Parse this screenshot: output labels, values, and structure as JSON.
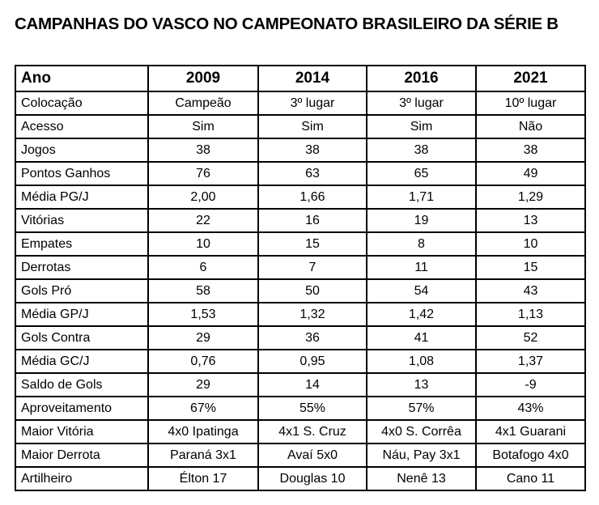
{
  "page": {
    "title": "CAMPANHAS DO VASCO NO CAMPEONATO BRASILEIRO DA SÉRIE B"
  },
  "table": {
    "header": [
      "Ano",
      "2009",
      "2014",
      "2016",
      "2021"
    ],
    "rows": [
      {
        "label": "Colocação",
        "values": [
          "Campeão",
          "3º lugar",
          "3º lugar",
          "10º lugar"
        ]
      },
      {
        "label": "Acesso",
        "values": [
          "Sim",
          "Sim",
          "Sim",
          "Não"
        ]
      },
      {
        "label": "Jogos",
        "values": [
          "38",
          "38",
          "38",
          "38"
        ]
      },
      {
        "label": "Pontos Ganhos",
        "values": [
          "76",
          "63",
          "65",
          "49"
        ]
      },
      {
        "label": "Média PG/J",
        "values": [
          "2,00",
          "1,66",
          "1,71",
          "1,29"
        ]
      },
      {
        "label": "Vitórias",
        "values": [
          "22",
          "16",
          "19",
          "13"
        ]
      },
      {
        "label": "Empates",
        "values": [
          "10",
          "15",
          "8",
          "10"
        ]
      },
      {
        "label": "Derrotas",
        "values": [
          "6",
          "7",
          "11",
          "15"
        ]
      },
      {
        "label": "Gols Pró",
        "values": [
          "58",
          "50",
          "54",
          "43"
        ]
      },
      {
        "label": "Média GP/J",
        "values": [
          "1,53",
          "1,32",
          "1,42",
          "1,13"
        ]
      },
      {
        "label": "Gols Contra",
        "values": [
          "29",
          "36",
          "41",
          "52"
        ]
      },
      {
        "label": "Média GC/J",
        "values": [
          "0,76",
          "0,95",
          "1,08",
          "1,37"
        ]
      },
      {
        "label": "Saldo de Gols",
        "values": [
          "29",
          "14",
          "13",
          "-9"
        ]
      },
      {
        "label": "Aproveitamento",
        "values": [
          "67%",
          "55%",
          "57%",
          "43%"
        ]
      },
      {
        "label": "Maior Vitória",
        "values": [
          "4x0 Ipatinga",
          "4x1 S. Cruz",
          "4x0 S. Corrêa",
          "4x1 Guarani"
        ]
      },
      {
        "label": "Maior Derrota",
        "values": [
          "Paraná 3x1",
          "Avaí 5x0",
          "Náu, Pay 3x1",
          "Botafogo 4x0"
        ]
      },
      {
        "label": "Artilheiro",
        "values": [
          "Élton 17",
          "Douglas 10",
          "Nenê 13",
          "Cano 11"
        ]
      }
    ]
  },
  "colors": {
    "text": "#000000",
    "border": "#000000",
    "background": "#ffffff"
  }
}
